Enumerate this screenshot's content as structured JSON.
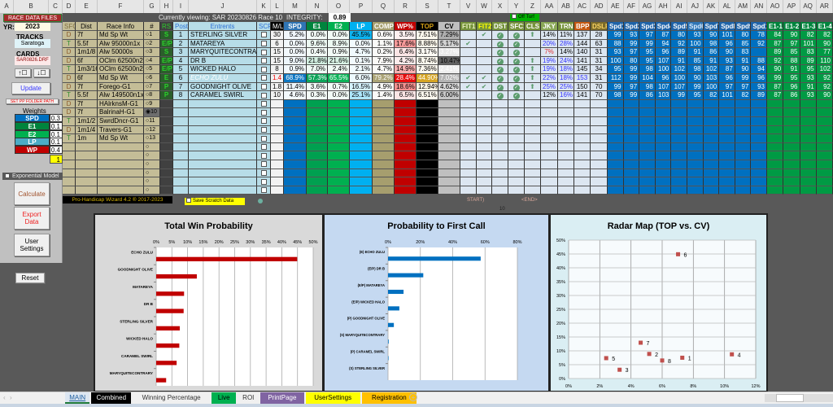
{
  "columns": [
    "A",
    "B",
    "C",
    "D",
    "E",
    "F",
    "G",
    "H",
    "I",
    "J",
    "K",
    "L",
    "M",
    "N",
    "O",
    "P",
    "Q",
    "R",
    "S",
    "T",
    "V",
    "W",
    "X",
    "Y",
    "Z",
    "AA",
    "AB",
    "AC",
    "AD",
    "AE",
    "AF",
    "AG",
    "AH",
    "AI",
    "AJ",
    "AK",
    "AL",
    "AM",
    "AN",
    "AO",
    "AP",
    "AQ",
    "AR"
  ],
  "left_panel": {
    "race_data_files": "RACE DATA FILES",
    "yr_label": "YR:",
    "yr_value": "2023",
    "tracks_label": "TRACKS",
    "track_value": "Saratoga",
    "cards_label": "CARDS",
    "card_value": "SAR0826.DRF",
    "up_button": "↑☐",
    "down_button": "↓☐",
    "update": "Update",
    "set_pp_folder": "SET PP FOLDER PATH",
    "weights_label": "Weights",
    "weights": [
      {
        "label": "SPD",
        "value": "0.3",
        "color": "#0070c0"
      },
      {
        "label": "E1",
        "value": "0.1",
        "color": "#00843d"
      },
      {
        "label": "E2",
        "value": "0.1",
        "color": "#00b050"
      },
      {
        "label": "LP",
        "value": "0.1",
        "color": "#4bacc6"
      },
      {
        "label": "WP",
        "value": "0.4",
        "color": "#c00000"
      }
    ],
    "weights_total": "1",
    "exponential_model": "Exponential Model",
    "calculate": "Calculate",
    "export_data": "Export Data",
    "user_settings": "User Settings",
    "reset": "Reset"
  },
  "top_bar": {
    "currently_viewing": "Currently viewing: SAR 20230826 Race 10",
    "integrity_label": "INTEGRITY:",
    "integrity_value": "0.89",
    "off_turf": "Off Turf"
  },
  "headers": {
    "D": "SFC",
    "E": "Dist",
    "F": "Race Info",
    "G": "#",
    "H": "RS",
    "I": "Post",
    "J": "Entrents",
    "K": "SCR",
    "L": "M/L",
    "M": "SPD",
    "N": "E1",
    "O": "E2",
    "P": "LP",
    "Q": "COMP",
    "R": "WP%",
    "S": "TOP",
    "T": "CV",
    "V": "FIT1",
    "W": "FIT2",
    "X": "DST",
    "Y": "SFC1",
    "Z": "CLS",
    "AA": "JKY",
    "AB": "TRN",
    "AC": "BPPR",
    "AD": "DSLR",
    "AE": "Spd1",
    "AF": "Spd2",
    "AG": "Spd3",
    "AH": "Spd4",
    "AI": "Spd5",
    "AJ": "Spd6",
    "AK": "Spd7",
    "AL": "Spd8",
    "AM": "Spd9",
    "AN": "Spd10",
    "AO": "E1-1",
    "AP": "E1-2",
    "AQ": "E1-3",
    "AR": "E1-4"
  },
  "races": [
    {
      "sfc": "D",
      "dist": "7f",
      "info": "Md Sp Wt",
      "num": "1"
    },
    {
      "sfc": "T",
      "dist": "5.5f",
      "info": "Alw 95000n1x",
      "num": "2"
    },
    {
      "sfc": "D",
      "dist": "1m1/8",
      "info": "Alw 50000s",
      "num": "3"
    },
    {
      "sfc": "D",
      "dist": "6f",
      "info": "OClm 62500n2x",
      "num": "4"
    },
    {
      "sfc": "T",
      "dist": "1m3/16",
      "info": "OClm 62500n2x",
      "num": "5"
    },
    {
      "sfc": "D",
      "dist": "6f",
      "info": "Md Sp Wt",
      "num": "6"
    },
    {
      "sfc": "D",
      "dist": "7f",
      "info": "Forego-G1",
      "num": "7"
    },
    {
      "sfc": "T",
      "dist": "5.5f",
      "info": "Alw 149500n1x",
      "num": "8"
    },
    {
      "sfc": "D",
      "dist": "7f",
      "info": "HAlrknsM-G1",
      "num": "9"
    },
    {
      "sfc": "D",
      "dist": "7f",
      "info": "BalrinaH-G1",
      "num": "10",
      "selected": true
    },
    {
      "sfc": "T",
      "dist": "1m1/2",
      "info": "SwrdDncr-G1",
      "num": "11"
    },
    {
      "sfc": "D",
      "dist": "1m1/4",
      "info": "Travers-G1",
      "num": "12"
    },
    {
      "sfc": "T",
      "dist": "1m",
      "info": "Md Sp Wt",
      "num": "13"
    }
  ],
  "entries": [
    {
      "rs": "S",
      "post": "1",
      "name": "STERLING SILVER",
      "ml": "30",
      "spd": "5.2%",
      "e1": "0.0%",
      "e2": "0.0%",
      "lp": "45.5%",
      "comp": "0.6%",
      "wp": "3.5%",
      "top": "7.51%",
      "cv": "7.29%",
      "fit1": false,
      "fit2": true,
      "dst": true,
      "sfc1": true,
      "cls": true,
      "jky": "14%",
      "trn": "11%",
      "bppr": "137",
      "dslr": "28",
      "spd_figs": [
        "99",
        "93",
        "97",
        "87",
        "80",
        "93",
        "90",
        "101",
        "80",
        "78"
      ],
      "e1_figs": [
        "84",
        "90",
        "82",
        "82"
      ]
    },
    {
      "rs": "E/P",
      "post": "2",
      "name": "MATAREYA",
      "ml": "6",
      "spd": "0.0%",
      "e1": "9.6%",
      "e2": "8.9%",
      "lp": "0.0%",
      "comp": "1.1%",
      "wp": "17.6%",
      "top": "8.88%",
      "cv": "5.17%",
      "fit1": true,
      "fit2": false,
      "dst": true,
      "sfc1": true,
      "cls": false,
      "jky": "20%",
      "trn": "28%",
      "bppr": "144",
      "dslr": "63",
      "spd_figs": [
        "88",
        "99",
        "99",
        "94",
        "92",
        "100",
        "98",
        "96",
        "85",
        "92"
      ],
      "e1_figs": [
        "87",
        "97",
        "101",
        "90"
      ]
    },
    {
      "rs": "S",
      "post": "3",
      "name": "MARYQUITECONTRARY",
      "ml": "15",
      "spd": "0.0%",
      "e1": "0.4%",
      "e2": "0.9%",
      "lp": "4.7%",
      "comp": "0.2%",
      "wp": "6.4%",
      "top": "3.17%",
      "cv": "3.27%",
      "fit1": false,
      "fit2": false,
      "dst": true,
      "sfc1": true,
      "cls": false,
      "jky": "7%",
      "trn": "14%",
      "bppr": "140",
      "dslr": "31",
      "spd_figs": [
        "93",
        "97",
        "95",
        "96",
        "89",
        "91",
        "86",
        "90",
        "83",
        ""
      ],
      "e1_figs": [
        "89",
        "85",
        "83",
        "77"
      ]
    },
    {
      "rs": "E/P",
      "post": "4",
      "name": "DR B",
      "ml": "15",
      "spd": "9.0%",
      "e1": "21.8%",
      "e2": "21.6%",
      "lp": "0.1%",
      "comp": "7.9%",
      "wp": "4.2%",
      "top": "8.74%",
      "cv": "10.47%",
      "fit1": false,
      "fit2": false,
      "dst": true,
      "sfc1": true,
      "cls": true,
      "jky": "19%",
      "trn": "24%",
      "bppr": "141",
      "dslr": "31",
      "spd_figs": [
        "100",
        "80",
        "95",
        "107",
        "91",
        "85",
        "91",
        "93",
        "91",
        "88"
      ],
      "e1_figs": [
        "92",
        "88",
        "89",
        "110"
      ]
    },
    {
      "rs": "E/P",
      "post": "5",
      "name": "WICKED HALO",
      "ml": "8",
      "spd": "0.9%",
      "e1": "7.0%",
      "e2": "2.4%",
      "lp": "2.1%",
      "comp": "4.7%",
      "wp": "14.9%",
      "top": "7.36%",
      "cv": "2.41%",
      "fit1": false,
      "fit2": false,
      "dst": true,
      "sfc1": true,
      "cls": true,
      "jky": "19%",
      "trn": "18%",
      "bppr": "145",
      "dslr": "34",
      "spd_figs": [
        "95",
        "99",
        "98",
        "100",
        "102",
        "98",
        "102",
        "87",
        "90",
        "94"
      ],
      "e1_figs": [
        "90",
        "91",
        "95",
        "102"
      ]
    },
    {
      "rs": "E",
      "post": "6",
      "name": "ECHO ZULU",
      "ml": "1.4",
      "spd": "68.9%",
      "e1": "57.3%",
      "e2": "65.5%",
      "lp": "6.0%",
      "comp": "79.2%",
      "wp": "28.4%",
      "top": "44.90%",
      "cv": "7.02%",
      "fit1": true,
      "fit2": true,
      "dst": true,
      "sfc1": true,
      "cls": true,
      "jky": "22%",
      "trn": "18%",
      "bppr": "153",
      "dslr": "31",
      "favorite": true,
      "spd_figs": [
        "112",
        "99",
        "104",
        "96",
        "100",
        "90",
        "103",
        "96",
        "99",
        "96"
      ],
      "e1_figs": [
        "99",
        "95",
        "93",
        "92"
      ]
    },
    {
      "rs": "P",
      "post": "7",
      "name": "GOODNIGHT OLIVE",
      "ml": "1.8",
      "spd": "11.4%",
      "e1": "3.6%",
      "e2": "0.7%",
      "lp": "16.5%",
      "comp": "4.9%",
      "wp": "18.6%",
      "top": "12.94%",
      "cv": "4.62%",
      "fit1": true,
      "fit2": true,
      "dst": true,
      "sfc1": true,
      "cls": true,
      "jky": "25%",
      "trn": "25%",
      "bppr": "150",
      "dslr": "70",
      "spd_figs": [
        "99",
        "97",
        "98",
        "107",
        "107",
        "99",
        "100",
        "97",
        "97",
        "93"
      ],
      "e1_figs": [
        "87",
        "96",
        "91",
        "92"
      ]
    },
    {
      "rs": "P",
      "post": "8",
      "name": "CARAMEL SWIRL",
      "ml": "10",
      "spd": "4.6%",
      "e1": "0.3%",
      "e2": "0.0%",
      "lp": "25.1%",
      "comp": "1.4%",
      "wp": "6.5%",
      "top": "6.51%",
      "cv": "6.00%",
      "fit1": false,
      "fit2": false,
      "dst": true,
      "sfc1": true,
      "cls": false,
      "jky": "12%",
      "trn": "16%",
      "bppr": "141",
      "dslr": "70",
      "spd_figs": [
        "98",
        "99",
        "86",
        "103",
        "99",
        "95",
        "82",
        "101",
        "82",
        "89"
      ],
      "e1_figs": [
        "87",
        "86",
        "93",
        "90"
      ]
    }
  ],
  "footer": {
    "credit": "Pro-Handicap Wizard 4.2 ® 2017-2023",
    "save_scratch": "Save Scratch Data",
    "start": "START)",
    "end": "<END>",
    "race_no": "10"
  },
  "chart_data": [
    {
      "type": "bar",
      "orientation": "horizontal",
      "title": "Total Win Probability",
      "categories": [
        "ECHO ZULU",
        "GOODNIGHT OLIVE",
        "MATAREYA",
        "DR B",
        "STERLING SILVER",
        "WICKED HALO",
        "CARAMEL SWIRL",
        "MARYQUITECONTRARY"
      ],
      "values": [
        44.9,
        12.94,
        8.88,
        8.74,
        7.51,
        7.36,
        6.51,
        3.17
      ],
      "xlim": [
        0,
        50
      ],
      "ticks": [
        "0%",
        "5%",
        "10%",
        "15%",
        "20%",
        "25%",
        "30%",
        "35%",
        "40%",
        "45%",
        "50%"
      ],
      "color": "#c00000",
      "grid": true
    },
    {
      "type": "bar",
      "orientation": "horizontal",
      "title": "Probability to First Call",
      "categories": [
        "(E) ECHO ZULU",
        "(E/P) DR B",
        "(E/P) MATAREYA",
        "(E/P) WICKED HALO",
        "(P) GOODNIGHT OLIVE",
        "(S) MARYQUITECONTRARY",
        "(P) CARAMEL SWIRL",
        "(S) STERLING SILVER"
      ],
      "values": [
        57.3,
        21.8,
        9.6,
        7.0,
        3.6,
        0.4,
        0.3,
        0.0
      ],
      "xlim": [
        0,
        80
      ],
      "ticks": [
        "0%",
        "20%",
        "40%",
        "60%",
        "80%"
      ],
      "color": "#0070c0",
      "grid": true
    },
    {
      "type": "scatter",
      "title": "Radar Map (TOP vs. CV)",
      "x": [
        7.29,
        5.17,
        3.27,
        10.47,
        2.41,
        7.02,
        4.62,
        6.0
      ],
      "y": [
        7.51,
        8.88,
        3.17,
        8.74,
        7.36,
        44.9,
        12.94,
        6.51
      ],
      "labels": [
        "1",
        "2",
        "3",
        "4",
        "5",
        "6",
        "7",
        "8"
      ],
      "xlim": [
        0,
        12
      ],
      "ylim": [
        0,
        50
      ],
      "xticks": [
        "0%",
        "2%",
        "4%",
        "6%",
        "8%",
        "10%",
        "12%"
      ],
      "yticks": [
        "0%",
        "5%",
        "10%",
        "15%",
        "20%",
        "25%",
        "30%",
        "35%",
        "40%",
        "45%",
        "50%"
      ],
      "color": "#c0504d",
      "grid": true
    }
  ],
  "tabs": [
    {
      "label": "MAIN",
      "bg": "#dce6f1",
      "fg": "#1f5fa0",
      "active": true
    },
    {
      "label": "Combined",
      "bg": "#000000",
      "fg": "#ffffff"
    },
    {
      "label": "Winning Percentage",
      "bg": "#f0f0f0",
      "fg": "#333333"
    },
    {
      "label": "Live",
      "bg": "#00b050",
      "fg": "#000000"
    },
    {
      "label": "ROI",
      "bg": "#f0f0f0",
      "fg": "#333333"
    },
    {
      "label": "PrintPage",
      "bg": "#8064a2",
      "fg": "#ffffff"
    },
    {
      "label": "UserSettings",
      "bg": "#ffff00",
      "fg": "#000000"
    },
    {
      "label": "Registration",
      "bg": "#ffc000",
      "fg": "#000000"
    }
  ]
}
